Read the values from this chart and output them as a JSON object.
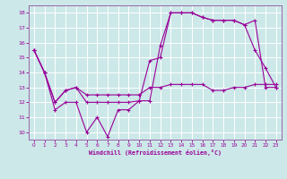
{
  "xlabel": "Windchill (Refroidissement éolien,°C)",
  "bg_color": "#cce8e8",
  "grid_color": "#ffffff",
  "line_color": "#990099",
  "spine_color": "#9966aa",
  "xlim": [
    -0.5,
    23.5
  ],
  "ylim": [
    9.5,
    18.5
  ],
  "xticks": [
    0,
    1,
    2,
    3,
    4,
    5,
    6,
    7,
    8,
    9,
    10,
    11,
    12,
    13,
    14,
    15,
    16,
    17,
    18,
    19,
    20,
    21,
    22,
    23
  ],
  "yticks": [
    10,
    11,
    12,
    13,
    14,
    15,
    16,
    17,
    18
  ],
  "line1_x": [
    0,
    1,
    2,
    3,
    4,
    5,
    6,
    7,
    8,
    9,
    10,
    11,
    12,
    13,
    14,
    15,
    16,
    17,
    18,
    19,
    20,
    21,
    22,
    23
  ],
  "line1_y": [
    15.5,
    14.0,
    11.5,
    12.0,
    12.0,
    10.0,
    11.0,
    9.7,
    11.5,
    11.5,
    12.1,
    12.1,
    15.8,
    18.0,
    18.0,
    18.0,
    17.7,
    17.5,
    17.5,
    17.5,
    17.2,
    15.5,
    14.3,
    13.0
  ],
  "line2_x": [
    0,
    1,
    2,
    3,
    4,
    5,
    6,
    7,
    8,
    9,
    10,
    11,
    12,
    13,
    14,
    15,
    16,
    17,
    18,
    19,
    20,
    21,
    22,
    23
  ],
  "line2_y": [
    15.5,
    14.0,
    12.0,
    12.8,
    13.0,
    12.0,
    12.0,
    12.0,
    12.0,
    12.0,
    12.1,
    14.8,
    15.0,
    18.0,
    18.0,
    18.0,
    17.7,
    17.5,
    17.5,
    17.5,
    17.2,
    17.5,
    13.0,
    13.0
  ],
  "line3_x": [
    0,
    1,
    2,
    3,
    4,
    5,
    6,
    7,
    8,
    9,
    10,
    11,
    12,
    13,
    14,
    15,
    16,
    17,
    18,
    19,
    20,
    21,
    22,
    23
  ],
  "line3_y": [
    15.5,
    14.0,
    12.0,
    12.8,
    13.0,
    12.5,
    12.5,
    12.5,
    12.5,
    12.5,
    12.5,
    13.0,
    13.0,
    13.2,
    13.2,
    13.2,
    13.2,
    12.8,
    12.8,
    13.0,
    13.0,
    13.2,
    13.2,
    13.2
  ]
}
